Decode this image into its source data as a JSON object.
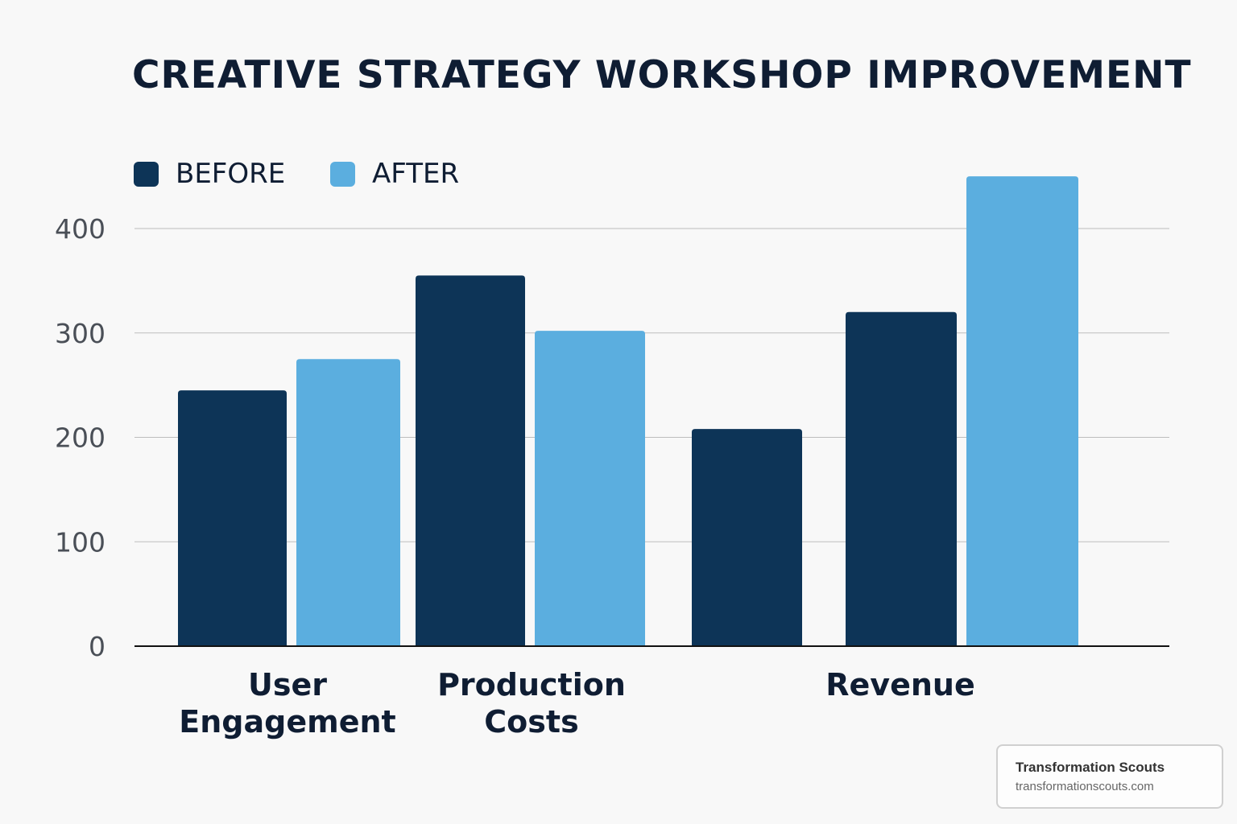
{
  "chart_data": {
    "type": "bar",
    "title": "CREATIVE STRATEGY WORKSHOP IMPROVEMENT",
    "categories": [
      "User\nEngagement",
      "Production\nCosts",
      "Revenue"
    ],
    "series": [
      {
        "name": "BEFORE",
        "color": "#0d3457",
        "values": [
          245,
          355,
          320
        ]
      },
      {
        "name": "AFTER",
        "color": "#5baedf",
        "values": [
          275,
          302,
          450
        ]
      }
    ],
    "extra_bars": [
      {
        "category": "Revenue",
        "series": "BEFORE",
        "value": 208
      }
    ],
    "yticks": [
      0,
      100,
      200,
      300,
      400
    ],
    "ylim": [
      0,
      450
    ],
    "xlabel": "",
    "ylabel": "",
    "grid": true,
    "legend_position": "top-left"
  },
  "watermark": {
    "name": "Transformation Scouts",
    "url": "transformationscouts.com"
  }
}
